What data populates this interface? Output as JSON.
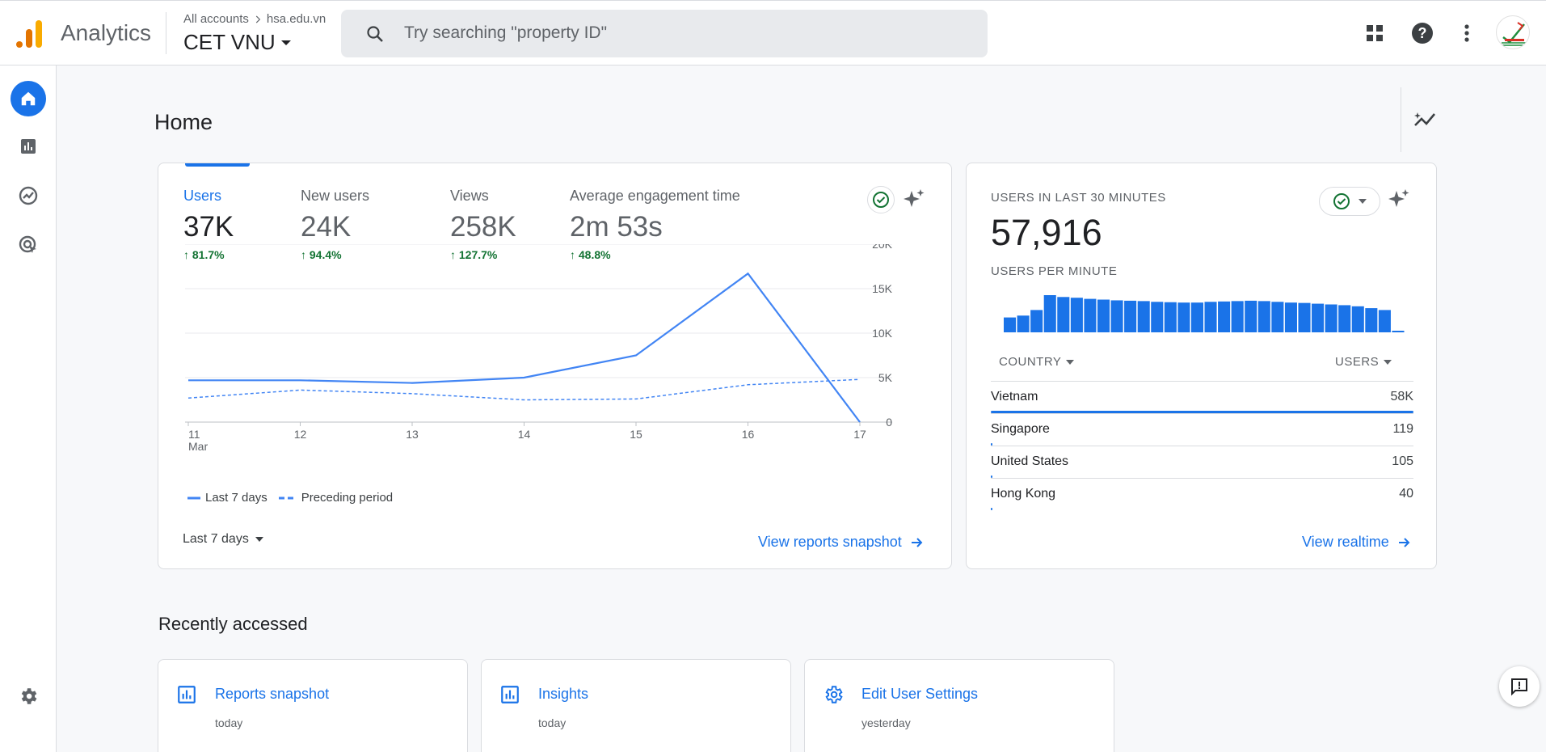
{
  "header": {
    "app_name": "Analytics",
    "breadcrumb_root": "All accounts",
    "breadcrumb_child": "hsa.edu.vn",
    "account_name": "CET VNU",
    "search_placeholder": "Try searching \"property ID\"",
    "icons": [
      "apps-grid-icon",
      "help-icon",
      "more-vert-icon",
      "avatar"
    ]
  },
  "sidebar": {
    "items": [
      "home-icon",
      "reports-icon",
      "explore-icon",
      "advertising-icon",
      "settings-icon"
    ]
  },
  "page": {
    "title": "Home"
  },
  "overview": {
    "metrics": [
      {
        "label": "Users",
        "value": "37K",
        "change": "81.7%"
      },
      {
        "label": "New users",
        "value": "24K",
        "change": "94.4%"
      },
      {
        "label": "Views",
        "value": "258K",
        "change": "127.7%"
      },
      {
        "label": "Average engagement time",
        "value": "2m 53s",
        "change": "48.8%"
      }
    ],
    "date_range": "Last 7 days",
    "link": "View reports snapshot"
  },
  "chart_data": {
    "type": "line",
    "x": [
      "11",
      "12",
      "13",
      "14",
      "15",
      "16",
      "17"
    ],
    "x_sublabel": "Mar",
    "y_ticks": [
      "20K",
      "15K",
      "10K",
      "5K",
      "0"
    ],
    "ylim": [
      0,
      20000
    ],
    "series": [
      {
        "name": "Last 7 days",
        "style": "solid",
        "color": "#4285f4",
        "values": [
          4700,
          4700,
          4400,
          5000,
          7500,
          16700,
          0
        ]
      },
      {
        "name": "Preceding period",
        "style": "dashed",
        "color": "#4285f4",
        "values": [
          2700,
          3600,
          3200,
          2500,
          2600,
          4200,
          4800
        ]
      }
    ]
  },
  "realtime": {
    "title": "USERS IN LAST 30 MINUTES",
    "value": "57,916",
    "per_minute_label": "USERS PER MINUTE",
    "per_minute": [
      0.4,
      0.45,
      0.6,
      1.0,
      0.95,
      0.93,
      0.9,
      0.88,
      0.86,
      0.85,
      0.84,
      0.82,
      0.81,
      0.8,
      0.8,
      0.82,
      0.83,
      0.84,
      0.85,
      0.84,
      0.82,
      0.8,
      0.79,
      0.77,
      0.75,
      0.73,
      0.7,
      0.65,
      0.6,
      0.04
    ],
    "col_country": "COUNTRY",
    "col_users": "USERS",
    "rows": [
      {
        "country": "Vietnam",
        "users": "58K",
        "share": 1.0
      },
      {
        "country": "Singapore",
        "users": "119",
        "share": 0.004
      },
      {
        "country": "United States",
        "users": "105",
        "share": 0.004
      },
      {
        "country": "Hong Kong",
        "users": "40",
        "share": 0.002
      }
    ],
    "link": "View realtime"
  },
  "recent": {
    "title": "Recently accessed",
    "items": [
      {
        "title": "Reports snapshot",
        "time": "today"
      },
      {
        "title": "Insights",
        "time": "today"
      },
      {
        "title": "Edit User Settings",
        "time": "yesterday"
      }
    ]
  }
}
